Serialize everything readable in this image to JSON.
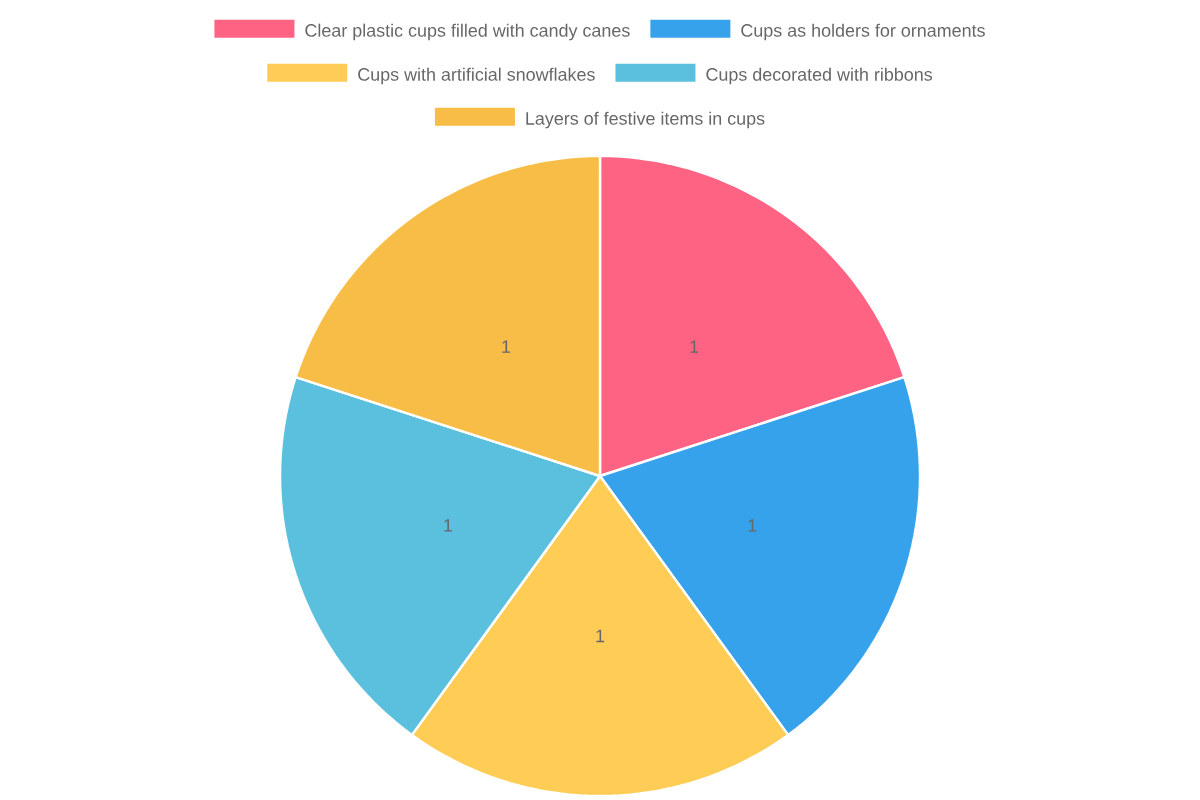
{
  "chart_data": {
    "type": "pie",
    "categories": [
      "Clear plastic cups filled with candy canes",
      "Cups as holders for ornaments",
      "Cups with artificial snowflakes",
      "Cups decorated with ribbons",
      "Layers of festive items in cups"
    ],
    "values": [
      1,
      1,
      1,
      1,
      1
    ],
    "colors": [
      "#ff6384",
      "#36a2eb",
      "#ffcd56",
      "#5bc0de",
      "#f7bd46"
    ],
    "data_labels": true,
    "legend": "top"
  }
}
